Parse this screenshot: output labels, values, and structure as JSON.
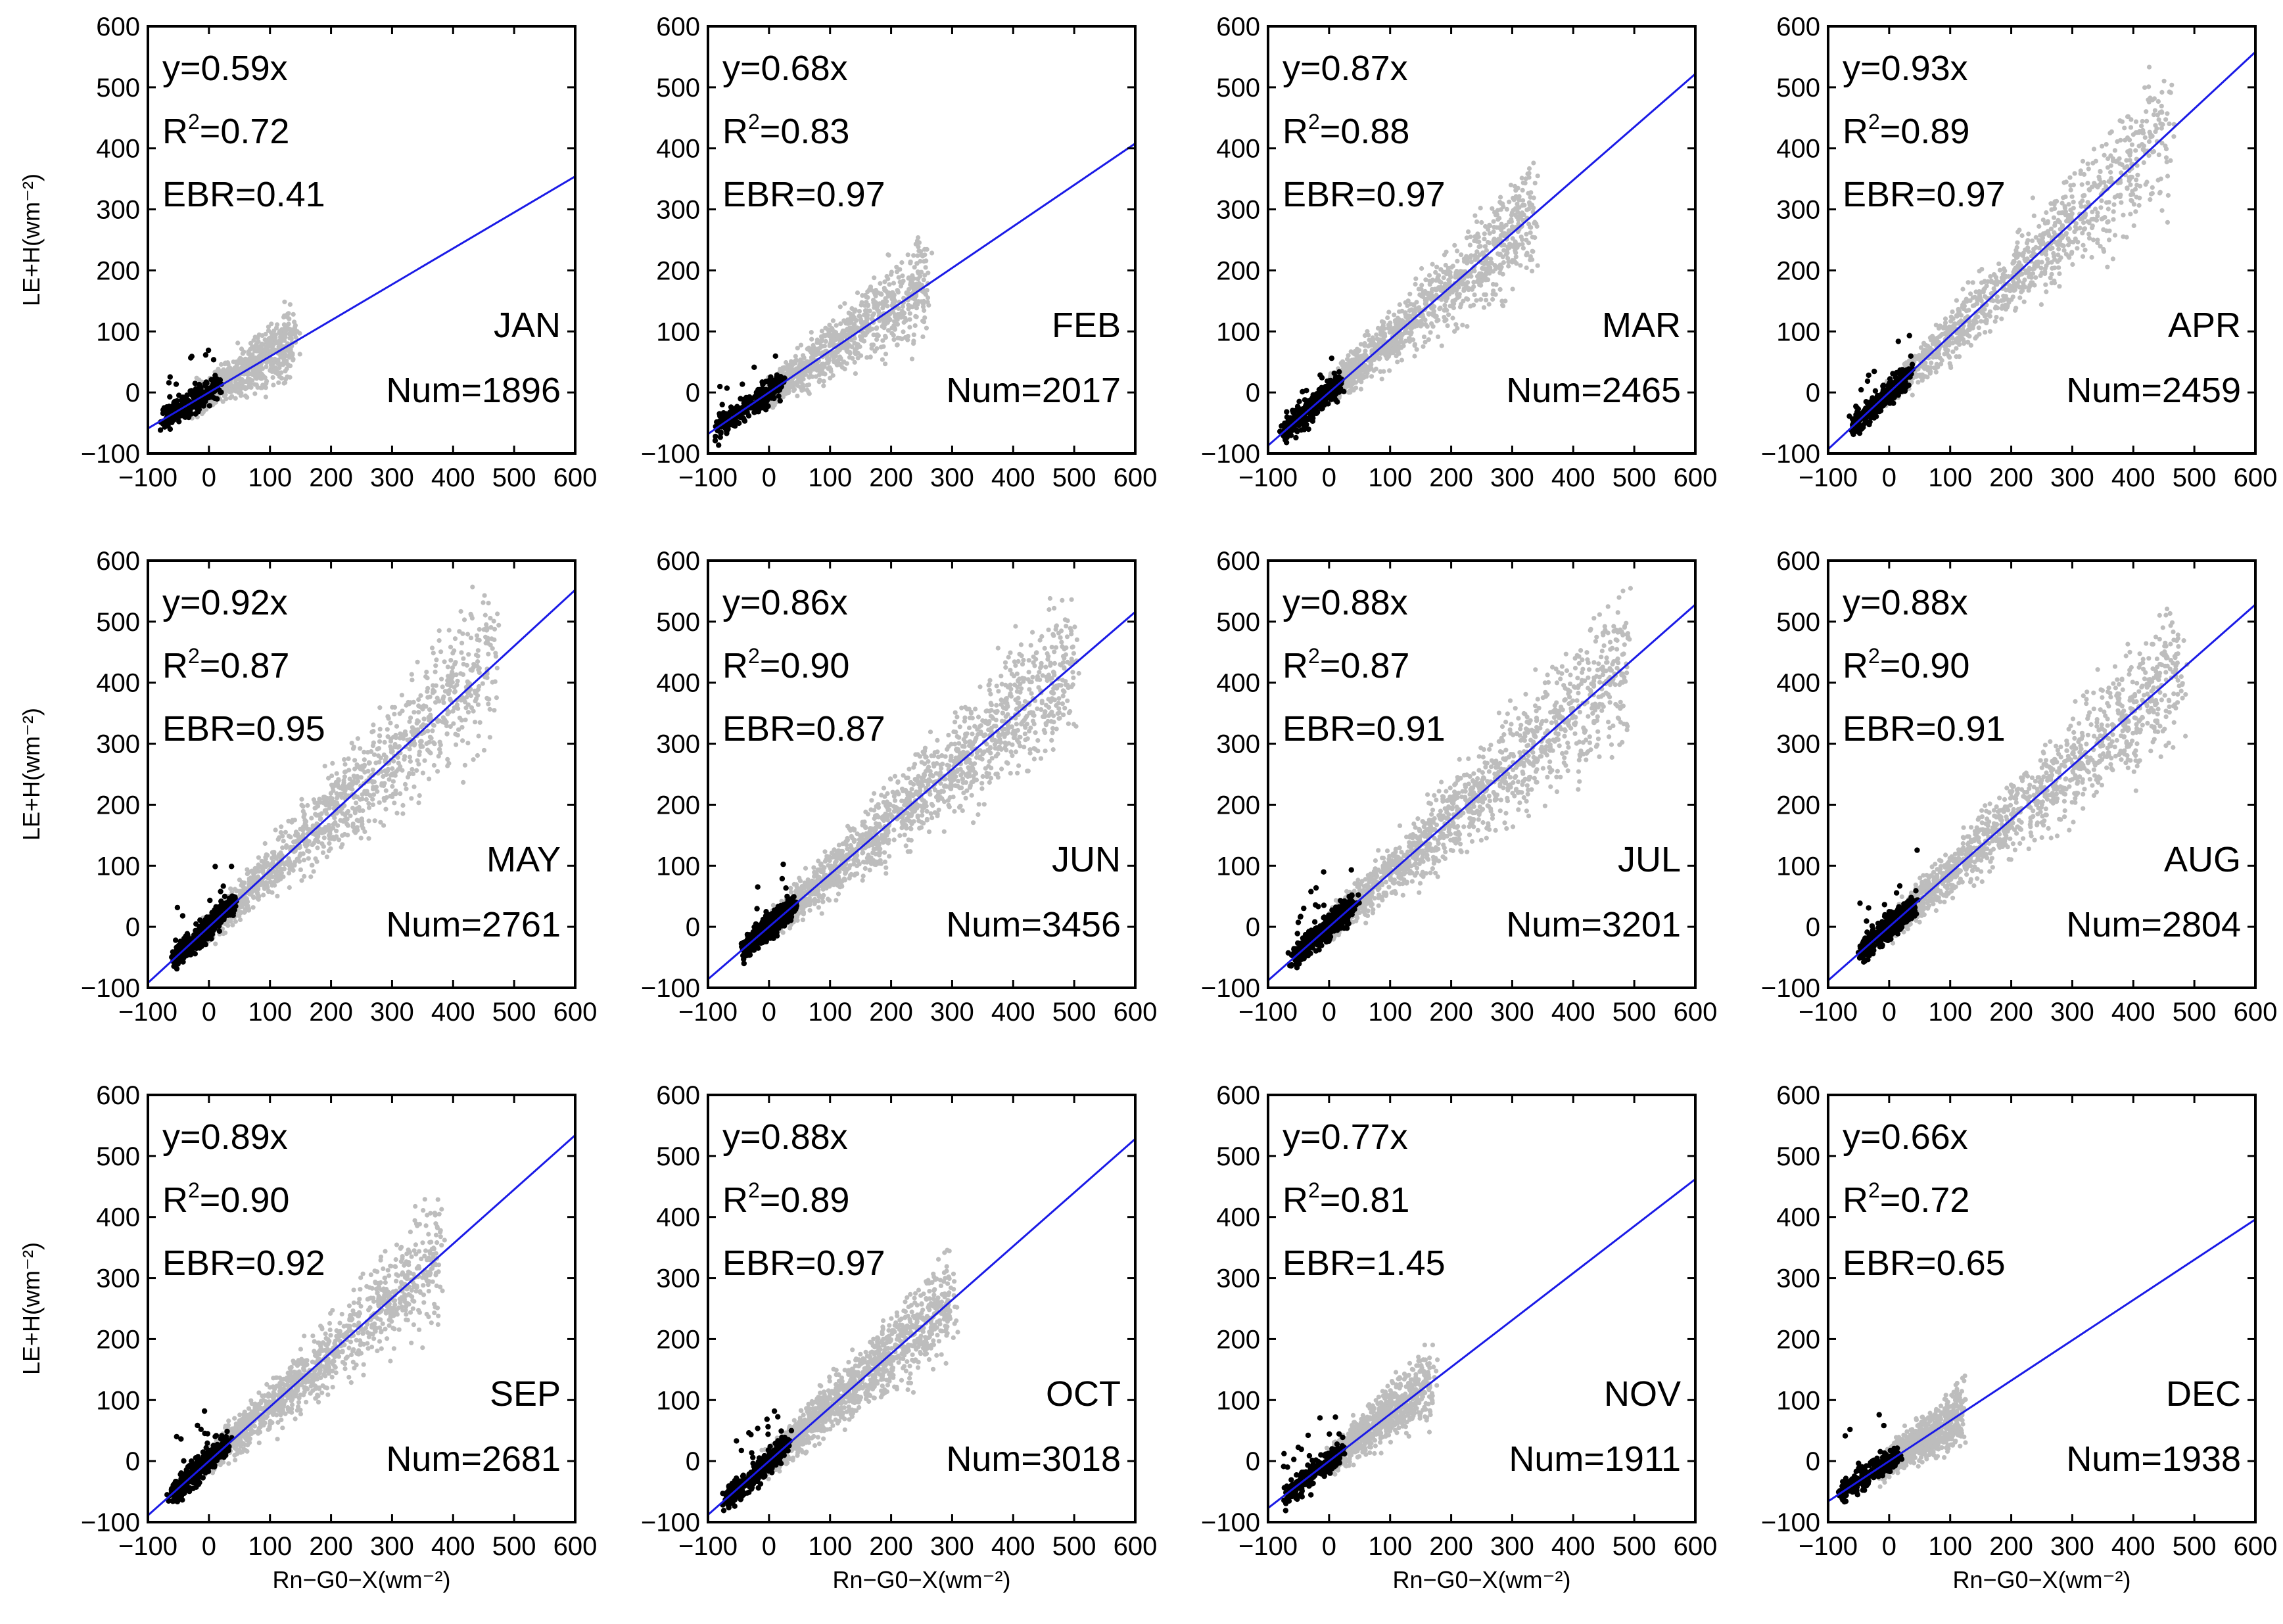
{
  "colors": {
    "fit_line": "#1a1ae6",
    "gray_points": "#bdbdbd",
    "black_points": "#000000"
  },
  "chart_data": [
    {
      "type": "scatter",
      "month": "JAN",
      "equation": "y=0.59x",
      "r2_value": "=0.72",
      "ebr": "EBR=0.41",
      "num": "Num=1896",
      "slope": 0.59,
      "r2": 0.72,
      "n": 1896,
      "xlim": [
        -100,
        600
      ],
      "ylim": [
        -100,
        600
      ],
      "ticks": [
        -100,
        0,
        100,
        200,
        300,
        400,
        500,
        600
      ],
      "xlabel": "",
      "ylabel": "LE+H(wm⁻²)",
      "gray_range": [
        -20,
        140
      ],
      "black_range": [
        -75,
        15
      ],
      "spread": 0.35
    },
    {
      "type": "scatter",
      "month": "FEB",
      "equation": "y=0.68x",
      "r2_value": "=0.83",
      "ebr": "EBR=0.97",
      "num": "Num=2017",
      "slope": 0.68,
      "r2": 0.83,
      "n": 2017,
      "xlim": [
        -100,
        600
      ],
      "ylim": [
        -100,
        600
      ],
      "ticks": [
        -100,
        0,
        100,
        200,
        300,
        400,
        500,
        600
      ],
      "xlabel": "",
      "ylabel": "",
      "gray_range": [
        0,
        260
      ],
      "black_range": [
        -85,
        20
      ],
      "spread": 0.3
    },
    {
      "type": "scatter",
      "month": "MAR",
      "equation": "y=0.87x",
      "r2_value": "=0.88",
      "ebr": "EBR=0.97",
      "num": "Num=2465",
      "slope": 0.87,
      "r2": 0.88,
      "n": 2465,
      "xlim": [
        -100,
        600
      ],
      "ylim": [
        -100,
        600
      ],
      "ticks": [
        -100,
        0,
        100,
        200,
        300,
        400,
        500,
        600
      ],
      "xlabel": "",
      "ylabel": "",
      "gray_range": [
        0,
        340
      ],
      "black_range": [
        -75,
        20
      ],
      "spread": 0.28
    },
    {
      "type": "scatter",
      "month": "APR",
      "equation": "y=0.93x",
      "r2_value": "=0.89",
      "ebr": "EBR=0.97",
      "num": "Num=2459",
      "slope": 0.93,
      "r2": 0.89,
      "n": 2459,
      "xlim": [
        -100,
        600
      ],
      "ylim": [
        -100,
        600
      ],
      "ticks": [
        -100,
        0,
        100,
        200,
        300,
        400,
        500,
        600
      ],
      "xlabel": "",
      "ylabel": "",
      "gray_range": [
        0,
        460
      ],
      "black_range": [
        -60,
        35
      ],
      "spread": 0.25
    },
    {
      "type": "scatter",
      "month": "MAY",
      "equation": "y=0.92x",
      "r2_value": "=0.87",
      "ebr": "EBR=0.95",
      "num": "Num=2761",
      "slope": 0.92,
      "r2": 0.87,
      "n": 2761,
      "xlim": [
        -100,
        600
      ],
      "ylim": [
        -100,
        600
      ],
      "ticks": [
        -100,
        0,
        100,
        200,
        300,
        400,
        500,
        600
      ],
      "xlabel": "",
      "ylabel": "LE+H(wm⁻²)",
      "gray_range": [
        0,
        470
      ],
      "black_range": [
        -55,
        40
      ],
      "spread": 0.28
    },
    {
      "type": "scatter",
      "month": "JUN",
      "equation": "y=0.86x",
      "r2_value": "=0.90",
      "ebr": "EBR=0.87",
      "num": "Num=3456",
      "slope": 0.86,
      "r2": 0.9,
      "n": 3456,
      "xlim": [
        -100,
        600
      ],
      "ylim": [
        -100,
        600
      ],
      "ticks": [
        -100,
        0,
        100,
        200,
        300,
        400,
        500,
        600
      ],
      "xlabel": "",
      "ylabel": "",
      "gray_range": [
        0,
        500
      ],
      "black_range": [
        -40,
        40
      ],
      "spread": 0.25
    },
    {
      "type": "scatter",
      "month": "JUL",
      "equation": "y=0.88x",
      "r2_value": "=0.87",
      "ebr": "EBR=0.91",
      "num": "Num=3201",
      "slope": 0.88,
      "r2": 0.87,
      "n": 3201,
      "xlim": [
        -100,
        600
      ],
      "ylim": [
        -100,
        600
      ],
      "ticks": [
        -100,
        0,
        100,
        200,
        300,
        400,
        500,
        600
      ],
      "xlabel": "",
      "ylabel": "",
      "gray_range": [
        0,
        490
      ],
      "black_range": [
        -60,
        40
      ],
      "spread": 0.27
    },
    {
      "type": "scatter",
      "month": "AUG",
      "equation": "y=0.88x",
      "r2_value": "=0.90",
      "ebr": "EBR=0.91",
      "num": "Num=2804",
      "slope": 0.88,
      "r2": 0.9,
      "n": 2804,
      "xlim": [
        -100,
        600
      ],
      "ylim": [
        -100,
        600
      ],
      "ticks": [
        -100,
        0,
        100,
        200,
        300,
        400,
        500,
        600
      ],
      "xlabel": "",
      "ylabel": "",
      "gray_range": [
        0,
        480
      ],
      "black_range": [
        -45,
        40
      ],
      "spread": 0.24
    },
    {
      "type": "scatter",
      "month": "SEP",
      "equation": "y=0.89x",
      "r2_value": "=0.90",
      "ebr": "EBR=0.92",
      "num": "Num=2681",
      "slope": 0.89,
      "r2": 0.9,
      "n": 2681,
      "xlim": [
        -100,
        600
      ],
      "ylim": [
        -100,
        600
      ],
      "ticks": [
        -100,
        0,
        100,
        200,
        300,
        400,
        500,
        600
      ],
      "xlabel": "Rn−G0−X(wm⁻²)",
      "ylabel": "LE+H(wm⁻²)",
      "gray_range": [
        0,
        380
      ],
      "black_range": [
        -60,
        30
      ],
      "spread": 0.24
    },
    {
      "type": "scatter",
      "month": "OCT",
      "equation": "y=0.88x",
      "r2_value": "=0.89",
      "ebr": "EBR=0.97",
      "num": "Num=3018",
      "slope": 0.88,
      "r2": 0.89,
      "n": 3018,
      "xlim": [
        -100,
        600
      ],
      "ylim": [
        -100,
        600
      ],
      "ticks": [
        -100,
        0,
        100,
        200,
        300,
        400,
        500,
        600
      ],
      "xlabel": "Rn−G0−X(wm⁻²)",
      "ylabel": "",
      "gray_range": [
        0,
        300
      ],
      "black_range": [
        -70,
        30
      ],
      "spread": 0.24
    },
    {
      "type": "scatter",
      "month": "NOV",
      "equation": "y=0.77x",
      "r2_value": "=0.81",
      "ebr": "EBR=1.45",
      "num": "Num=1911",
      "slope": 0.77,
      "r2": 0.81,
      "n": 1911,
      "xlim": [
        -100,
        600
      ],
      "ylim": [
        -100,
        600
      ],
      "ticks": [
        -100,
        0,
        100,
        200,
        300,
        400,
        500,
        600
      ],
      "xlabel": "Rn−G0−X(wm⁻²)",
      "ylabel": "",
      "gray_range": [
        0,
        170
      ],
      "black_range": [
        -70,
        20
      ],
      "spread": 0.3
    },
    {
      "type": "scatter",
      "month": "DEC",
      "equation": "y=0.66x",
      "r2_value": "=0.72",
      "ebr": "EBR=0.65",
      "num": "Num=1938",
      "slope": 0.66,
      "r2": 0.72,
      "n": 1938,
      "xlim": [
        -100,
        600
      ],
      "ylim": [
        -100,
        600
      ],
      "ticks": [
        -100,
        0,
        100,
        200,
        300,
        400,
        500,
        600
      ],
      "xlabel": "Rn−G0−X(wm⁻²)",
      "ylabel": "",
      "gray_range": [
        -10,
        120
      ],
      "black_range": [
        -80,
        15
      ],
      "spread": 0.35
    }
  ]
}
